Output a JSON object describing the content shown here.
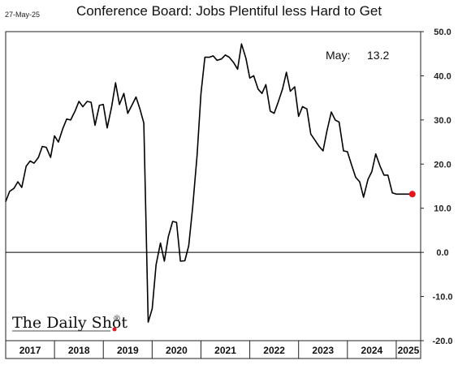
{
  "header": {
    "date": "27-May-25",
    "title": "Conference Board: Jobs Plentiful less Hard to Get"
  },
  "annotation": {
    "label": "May:",
    "value": "13.2"
  },
  "brand": {
    "name": "The Daily Shot",
    "mark": "®"
  },
  "colors": {
    "line": "#000000",
    "marker": "#e8141c",
    "zero_line": "#000000",
    "frame": "#222222"
  },
  "chart_data": {
    "type": "line",
    "title": "Conference Board: Jobs Plentiful less Hard to Get",
    "xlabel": "",
    "ylabel": "",
    "x_ticks": [
      "2017",
      "2018",
      "2019",
      "2020",
      "2021",
      "2022",
      "2023",
      "2024",
      "2025"
    ],
    "y_ticks": [
      "-20.0",
      "-10.0",
      "0.0",
      "10.0",
      "20.0",
      "30.0",
      "40.0",
      "50.0"
    ],
    "ylim": [
      -20,
      50
    ],
    "xlim": [
      2017.0,
      2025.5
    ],
    "y_axis_position": "right",
    "grid": false,
    "zero_line": true,
    "last_point": {
      "x": 2025.33,
      "y": 13.2
    },
    "series": [
      {
        "x": [
          2017.0,
          2017.08,
          2017.17,
          2017.25,
          2017.33,
          2017.42,
          2017.5,
          2017.58,
          2017.67,
          2017.75,
          2017.83,
          2017.92,
          2018.0,
          2018.08,
          2018.17,
          2018.25,
          2018.33,
          2018.42,
          2018.5,
          2018.58,
          2018.67,
          2018.75,
          2018.83,
          2018.92,
          2019.0,
          2019.08,
          2019.17,
          2019.25,
          2019.33,
          2019.42,
          2019.5,
          2019.58,
          2019.67,
          2019.75,
          2019.83,
          2019.92,
          2020.0,
          2020.08,
          2020.17,
          2020.25,
          2020.33,
          2020.42,
          2020.5,
          2020.58,
          2020.67,
          2020.75,
          2020.83,
          2020.92,
          2021.0,
          2021.08,
          2021.17,
          2021.25,
          2021.33,
          2021.42,
          2021.5,
          2021.58,
          2021.67,
          2021.75,
          2021.83,
          2021.92,
          2022.0,
          2022.08,
          2022.17,
          2022.25,
          2022.33,
          2022.42,
          2022.5,
          2022.58,
          2022.67,
          2022.75,
          2022.83,
          2022.92,
          2023.0,
          2023.08,
          2023.17,
          2023.25,
          2023.33,
          2023.42,
          2023.5,
          2023.58,
          2023.67,
          2023.75,
          2023.83,
          2023.92,
          2024.0,
          2024.08,
          2024.17,
          2024.25,
          2024.33,
          2024.42,
          2024.5,
          2024.58,
          2024.67,
          2024.75,
          2024.83,
          2024.92,
          2025.0,
          2025.08,
          2025.17,
          2025.25,
          2025.33
        ],
        "values": [
          11.5,
          13.8,
          14.5,
          16.0,
          14.7,
          19.5,
          20.7,
          20.2,
          21.5,
          24.0,
          23.8,
          21.5,
          26.4,
          25.0,
          28.0,
          30.2,
          30.0,
          32.0,
          34.2,
          33.0,
          34.2,
          34.0,
          28.8,
          33.3,
          33.5,
          28.2,
          33.0,
          38.4,
          33.5,
          36.0,
          31.5,
          33.2,
          35.2,
          32.5,
          29.3,
          -15.8,
          -12.8,
          -2.8,
          2.1,
          -2.0,
          3.5,
          7.0,
          6.8,
          -2.0,
          -1.9,
          1.5,
          10.3,
          22.0,
          36.0,
          44.2,
          44.2,
          44.5,
          43.5,
          43.8,
          44.7,
          44.2,
          43.0,
          41.5,
          47.2,
          44.0,
          39.5,
          40.0,
          37.0,
          36.0,
          38.0,
          32.0,
          31.5,
          34.0,
          37.0,
          40.8,
          36.5,
          37.5,
          30.8,
          33.0,
          32.5,
          26.8,
          25.5,
          24.0,
          23.0,
          27.5,
          31.8,
          30.0,
          29.5,
          23.0,
          22.8,
          20.0,
          17.0,
          16.0,
          12.5,
          16.5,
          18.3,
          22.3,
          19.5,
          17.5,
          17.5,
          13.5,
          13.2,
          13.2,
          13.2,
          13.2,
          13.2
        ]
      }
    ]
  }
}
